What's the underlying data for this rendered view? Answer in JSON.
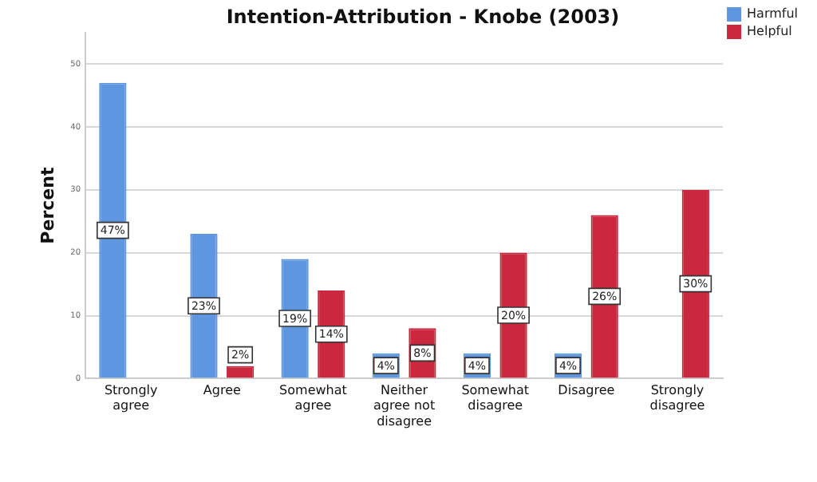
{
  "chart_data": {
    "type": "bar",
    "title": "Intention-Attribution - Knobe (2003)",
    "ylabel": "Percent",
    "categories": [
      "Strongly agree",
      "Agree",
      "Somewhat agree",
      "Neither agree not disagree",
      "Somewhat disagree",
      "Disagree",
      "Strongly disagree"
    ],
    "series": [
      {
        "name": "Harmful",
        "color": "#5f96e0",
        "values": [
          47,
          23,
          19,
          4,
          4,
          4,
          null
        ],
        "value_labels": [
          "47%",
          "23%",
          "19%",
          "4%",
          "4%",
          "4%",
          null
        ]
      },
      {
        "name": "Helpful",
        "color": "#c9283e",
        "values": [
          null,
          2,
          14,
          8,
          20,
          26,
          30
        ],
        "value_labels": [
          null,
          "2%",
          "14%",
          "8%",
          "20%",
          "26%",
          "30%"
        ]
      }
    ],
    "ylim": [
      0,
      55
    ],
    "yticks": [
      0,
      10,
      20,
      30,
      40,
      50
    ],
    "grid": "y",
    "legend": "top right"
  }
}
